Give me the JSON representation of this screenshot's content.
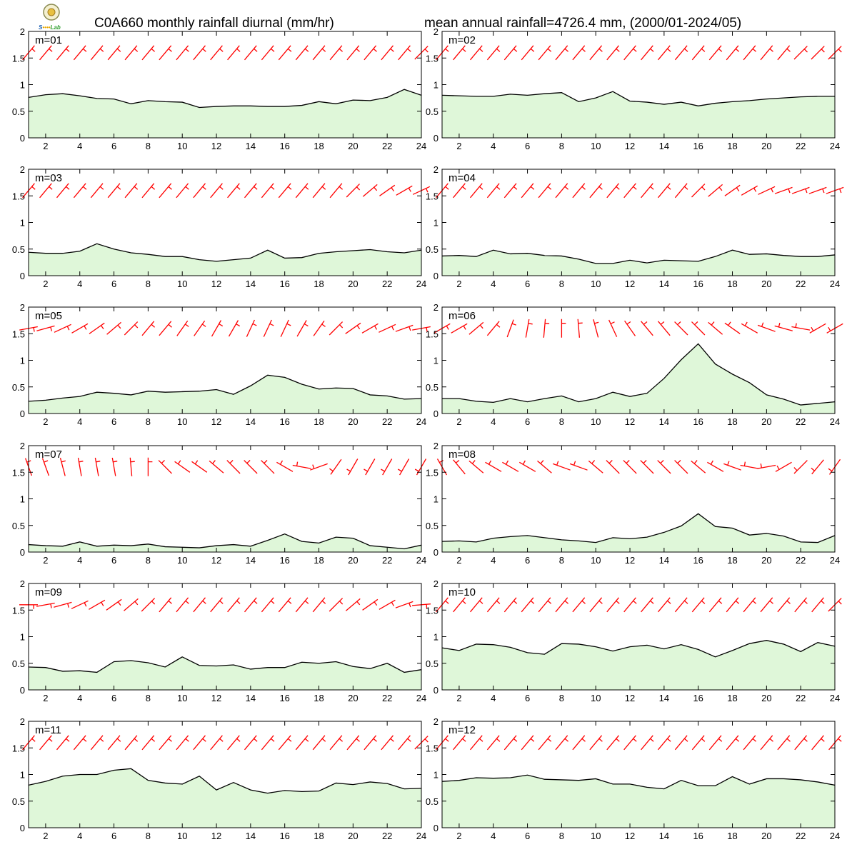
{
  "title_left": "C0A660 monthly rainfall diurnal (mm/hr)",
  "title_right": "mean annual rainfall=4726.4 mm, (2000/01-2024/05)",
  "logo": {
    "text": "Lab",
    "colors": [
      "#1a5fb4",
      "#e8a800",
      "#2e9e2e"
    ]
  },
  "colors": {
    "fill": "#dff7d9",
    "line": "#000000",
    "wind": "#ff0000"
  },
  "chart_data": {
    "type": "area",
    "x": [
      1,
      2,
      3,
      4,
      5,
      6,
      7,
      8,
      9,
      10,
      11,
      12,
      13,
      14,
      15,
      16,
      17,
      18,
      19,
      20,
      21,
      22,
      23,
      24
    ],
    "ylim": [
      0,
      2
    ],
    "xlim": [
      1,
      24
    ],
    "yticks": [
      "0",
      "0.5",
      "1",
      "1.5",
      "2"
    ],
    "xticks": [
      "2",
      "4",
      "6",
      "8",
      "10",
      "12",
      "14",
      "16",
      "18",
      "20",
      "22",
      "24"
    ],
    "grid": false,
    "panels": [
      {
        "label": "m=01",
        "values": [
          0.76,
          0.81,
          0.83,
          0.79,
          0.74,
          0.73,
          0.64,
          0.7,
          0.68,
          0.67,
          0.57,
          0.59,
          0.6,
          0.6,
          0.59,
          0.59,
          0.61,
          0.68,
          0.64,
          0.71,
          0.7,
          0.76,
          0.91,
          0.8
        ],
        "wind_deg": [
          40,
          40,
          40,
          40,
          40,
          40,
          40,
          40,
          40,
          40,
          40,
          40,
          40,
          40,
          40,
          40,
          40,
          40,
          40,
          40,
          40,
          40,
          40,
          45
        ]
      },
      {
        "label": "m=02",
        "values": [
          0.8,
          0.79,
          0.78,
          0.78,
          0.82,
          0.8,
          0.83,
          0.85,
          0.68,
          0.75,
          0.87,
          0.69,
          0.67,
          0.63,
          0.67,
          0.6,
          0.65,
          0.68,
          0.7,
          0.73,
          0.75,
          0.77,
          0.78,
          0.78
        ],
        "wind_deg": [
          40,
          40,
          40,
          40,
          40,
          40,
          40,
          40,
          40,
          40,
          40,
          40,
          40,
          40,
          40,
          40,
          40,
          40,
          40,
          40,
          40,
          45,
          45,
          45
        ]
      },
      {
        "label": "m=03",
        "values": [
          0.44,
          0.42,
          0.42,
          0.46,
          0.6,
          0.5,
          0.43,
          0.4,
          0.36,
          0.36,
          0.3,
          0.27,
          0.3,
          0.33,
          0.48,
          0.33,
          0.34,
          0.42,
          0.45,
          0.47,
          0.49,
          0.45,
          0.43,
          0.48
        ],
        "wind_deg": [
          40,
          40,
          40,
          40,
          40,
          40,
          40,
          40,
          40,
          40,
          40,
          40,
          40,
          40,
          40,
          40,
          40,
          40,
          40,
          45,
          50,
          55,
          60,
          65
        ]
      },
      {
        "label": "m=04",
        "values": [
          0.37,
          0.38,
          0.36,
          0.48,
          0.41,
          0.42,
          0.38,
          0.37,
          0.31,
          0.23,
          0.23,
          0.29,
          0.24,
          0.29,
          0.28,
          0.27,
          0.36,
          0.48,
          0.4,
          0.41,
          0.38,
          0.36,
          0.36,
          0.39
        ],
        "wind_deg": [
          40,
          40,
          40,
          40,
          40,
          40,
          40,
          40,
          40,
          40,
          40,
          40,
          40,
          40,
          40,
          45,
          50,
          55,
          60,
          65,
          70,
          70,
          70,
          70
        ]
      },
      {
        "label": "m=05",
        "values": [
          0.23,
          0.25,
          0.29,
          0.32,
          0.4,
          0.38,
          0.35,
          0.42,
          0.4,
          0.41,
          0.42,
          0.45,
          0.36,
          0.52,
          0.72,
          0.68,
          0.55,
          0.46,
          0.48,
          0.47,
          0.35,
          0.33,
          0.27,
          0.28
        ],
        "wind_deg": [
          80,
          75,
          65,
          60,
          55,
          50,
          45,
          40,
          40,
          35,
          35,
          30,
          30,
          25,
          25,
          25,
          30,
          35,
          45,
          55,
          60,
          65,
          70,
          80
        ]
      },
      {
        "label": "m=06",
        "values": [
          0.28,
          0.28,
          0.23,
          0.21,
          0.28,
          0.22,
          0.28,
          0.33,
          0.22,
          0.28,
          0.4,
          0.32,
          0.38,
          0.66,
          1.01,
          1.31,
          0.93,
          0.74,
          0.58,
          0.35,
          0.27,
          0.16,
          0.19,
          0.22
        ],
        "wind_deg": [
          60,
          60,
          50,
          40,
          20,
          10,
          5,
          0,
          -5,
          -15,
          -25,
          -35,
          -40,
          -40,
          -45,
          -45,
          -50,
          -55,
          -60,
          -70,
          -75,
          -80,
          -120,
          -120
        ]
      },
      {
        "label": "m=07",
        "values": [
          0.14,
          0.12,
          0.11,
          0.19,
          0.11,
          0.13,
          0.12,
          0.15,
          0.1,
          0.09,
          0.08,
          0.12,
          0.14,
          0.11,
          0.22,
          0.34,
          0.2,
          0.17,
          0.28,
          0.26,
          0.12,
          0.09,
          0.06,
          0.13
        ],
        "wind_deg": [
          -20,
          -20,
          -15,
          -10,
          -10,
          -10,
          -5,
          0,
          -45,
          -55,
          -55,
          -50,
          -45,
          -45,
          -45,
          -60,
          -80,
          -110,
          -145,
          -150,
          -150,
          -150,
          -150,
          -150
        ]
      },
      {
        "label": "m=08",
        "values": [
          0.2,
          0.21,
          0.19,
          0.26,
          0.29,
          0.31,
          0.27,
          0.23,
          0.21,
          0.18,
          0.27,
          0.25,
          0.28,
          0.37,
          0.49,
          0.72,
          0.48,
          0.45,
          0.32,
          0.35,
          0.3,
          0.19,
          0.18,
          0.31
        ],
        "wind_deg": [
          -30,
          -40,
          -50,
          -60,
          -60,
          -60,
          -50,
          -70,
          -70,
          -50,
          -45,
          -45,
          -45,
          -45,
          -45,
          -50,
          -60,
          -70,
          -80,
          -100,
          -120,
          -135,
          -140,
          -145
        ]
      },
      {
        "label": "m=09",
        "values": [
          0.43,
          0.42,
          0.35,
          0.36,
          0.33,
          0.53,
          0.55,
          0.51,
          0.43,
          0.62,
          0.46,
          0.45,
          0.47,
          0.39,
          0.42,
          0.42,
          0.52,
          0.5,
          0.53,
          0.44,
          0.4,
          0.5,
          0.33,
          0.38
        ],
        "wind_deg": [
          90,
          80,
          75,
          65,
          60,
          55,
          50,
          45,
          40,
          40,
          40,
          40,
          40,
          40,
          40,
          40,
          40,
          40,
          45,
          50,
          55,
          60,
          70,
          85
        ]
      },
      {
        "label": "m=10",
        "values": [
          0.79,
          0.74,
          0.86,
          0.85,
          0.8,
          0.7,
          0.67,
          0.87,
          0.86,
          0.81,
          0.73,
          0.81,
          0.84,
          0.77,
          0.85,
          0.76,
          0.62,
          0.74,
          0.87,
          0.93,
          0.86,
          0.72,
          0.89,
          0.82
        ],
        "wind_deg": [
          40,
          40,
          40,
          40,
          40,
          40,
          40,
          40,
          40,
          40,
          40,
          40,
          40,
          40,
          40,
          40,
          40,
          40,
          40,
          40,
          40,
          40,
          40,
          45
        ]
      },
      {
        "label": "m=11",
        "values": [
          0.8,
          0.87,
          0.97,
          1.0,
          1.0,
          1.08,
          1.11,
          0.89,
          0.84,
          0.82,
          0.97,
          0.71,
          0.85,
          0.71,
          0.65,
          0.7,
          0.68,
          0.69,
          0.84,
          0.81,
          0.86,
          0.83,
          0.73,
          0.74
        ],
        "wind_deg": [
          40,
          40,
          40,
          40,
          40,
          40,
          40,
          40,
          40,
          40,
          40,
          40,
          40,
          40,
          40,
          40,
          40,
          40,
          40,
          40,
          40,
          40,
          40,
          45
        ]
      },
      {
        "label": "m=12",
        "values": [
          0.87,
          0.89,
          0.94,
          0.93,
          0.94,
          0.99,
          0.91,
          0.9,
          0.89,
          0.92,
          0.82,
          0.82,
          0.76,
          0.73,
          0.89,
          0.79,
          0.79,
          0.96,
          0.82,
          0.92,
          0.92,
          0.9,
          0.86,
          0.8
        ],
        "wind_deg": [
          40,
          40,
          40,
          40,
          40,
          40,
          40,
          40,
          40,
          40,
          40,
          40,
          40,
          40,
          40,
          40,
          40,
          40,
          40,
          40,
          40,
          40,
          40,
          40
        ]
      }
    ]
  }
}
